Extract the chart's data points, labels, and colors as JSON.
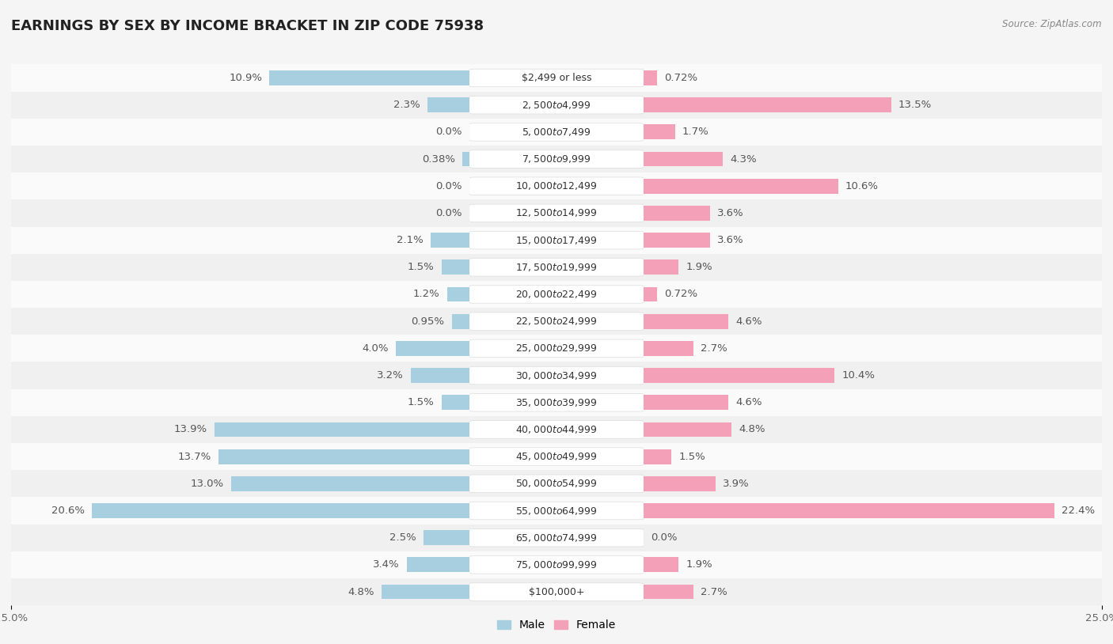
{
  "title": "EARNINGS BY SEX BY INCOME BRACKET IN ZIP CODE 75938",
  "source": "Source: ZipAtlas.com",
  "categories": [
    "$2,499 or less",
    "$2,500 to $4,999",
    "$5,000 to $7,499",
    "$7,500 to $9,999",
    "$10,000 to $12,499",
    "$12,500 to $14,999",
    "$15,000 to $17,499",
    "$17,500 to $19,999",
    "$20,000 to $22,499",
    "$22,500 to $24,999",
    "$25,000 to $29,999",
    "$30,000 to $34,999",
    "$35,000 to $39,999",
    "$40,000 to $44,999",
    "$45,000 to $49,999",
    "$50,000 to $54,999",
    "$55,000 to $64,999",
    "$65,000 to $74,999",
    "$75,000 to $99,999",
    "$100,000+"
  ],
  "male_values": [
    10.9,
    2.3,
    0.0,
    0.38,
    0.0,
    0.0,
    2.1,
    1.5,
    1.2,
    0.95,
    4.0,
    3.2,
    1.5,
    13.9,
    13.7,
    13.0,
    20.6,
    2.5,
    3.4,
    4.8
  ],
  "female_values": [
    0.72,
    13.5,
    1.7,
    4.3,
    10.6,
    3.6,
    3.6,
    1.9,
    0.72,
    4.6,
    2.7,
    10.4,
    4.6,
    4.8,
    1.5,
    3.9,
    22.4,
    0.0,
    1.9,
    2.7
  ],
  "male_color": "#a8cfe0",
  "female_color": "#f4a0b8",
  "row_color_odd": "#f0f0f0",
  "row_color_even": "#fafafa",
  "background_color": "#f5f5f5",
  "pill_color": "#ffffff",
  "xlim": 25.0,
  "bar_height": 0.55,
  "title_fontsize": 13,
  "label_fontsize": 9.5,
  "category_fontsize": 9,
  "source_fontsize": 8.5,
  "tick_fontsize": 9.5,
  "value_color": "#555555"
}
